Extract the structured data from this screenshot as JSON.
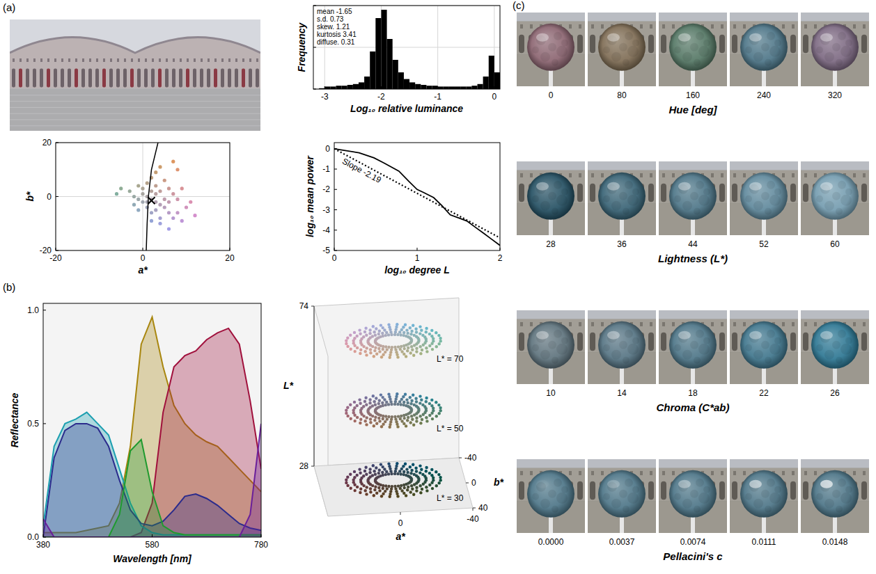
{
  "panel_labels": [
    "(a)",
    "(b)",
    "(c)"
  ],
  "chart_data": [
    {
      "type": "histogram",
      "x_label": "Log₁₀ relative luminance",
      "y_label": "Frequency",
      "bins": [
        -3.2,
        -3.1,
        -3.0,
        -2.9,
        -2.8,
        -2.7,
        -2.6,
        -2.5,
        -2.4,
        -2.3,
        -2.2,
        -2.1,
        -2.0,
        -1.9,
        -1.8,
        -1.7,
        -1.6,
        -1.5,
        -1.4,
        -1.3,
        -1.2,
        -1.1,
        -1.0,
        -0.9,
        -0.8,
        -0.7,
        -0.6,
        -0.5,
        -0.4,
        -0.3,
        -0.2,
        -0.1,
        0.0,
        0.1
      ],
      "values": [
        0,
        0.01,
        0.03,
        0.03,
        0.04,
        0.04,
        0.05,
        0.06,
        0.08,
        0.15,
        0.45,
        0.85,
        0.95,
        0.6,
        0.35,
        0.2,
        0.12,
        0.08,
        0.06,
        0.05,
        0.04,
        0.04,
        0.03,
        0.03,
        0.03,
        0.03,
        0.03,
        0.03,
        0.04,
        0.06,
        0.15,
        0.4,
        0.2
      ],
      "color": "#000000",
      "xlim": [
        -3.2,
        0.1
      ],
      "xticks": [
        -3,
        -2,
        -1,
        0
      ],
      "ylim": [
        0,
        1
      ],
      "yticks": [
        0,
        0.5,
        1
      ],
      "tick_labels": "x",
      "grid": true,
      "annotations": [
        "mean -1.65",
        "s.d. 0.73",
        "skew. 1.21",
        "kurtosis 3.41",
        "diffuse. 0.31"
      ]
    },
    {
      "type": "scatter",
      "x_label": "a*",
      "y_label": "b*",
      "xlim": [
        -20,
        20
      ],
      "ylim": [
        -20,
        20
      ],
      "xticks": [
        -20,
        0,
        20
      ],
      "yticks": [
        -20,
        0,
        20
      ],
      "grid": true,
      "series": [
        {
          "type": "scatter",
          "x": [
            2,
            1,
            3,
            2,
            0,
            4,
            3,
            5,
            6,
            7,
            8,
            9,
            4,
            2,
            1,
            -1,
            -2,
            -3,
            -5,
            -6,
            0,
            1,
            2,
            3,
            4,
            7,
            8,
            5,
            6,
            7,
            8,
            10,
            12,
            11,
            9,
            4,
            6,
            2,
            -1,
            -2,
            0,
            3,
            5,
            4,
            1,
            3,
            -1,
            6
          ],
          "values": [
            -1,
            0,
            1,
            2,
            -2,
            -3,
            -5,
            -4,
            -6,
            -8,
            -6,
            -9,
            -8,
            -6,
            -4,
            -1,
            0,
            2,
            3,
            1,
            3,
            5,
            7,
            9,
            11,
            13,
            10,
            6,
            3,
            1,
            -1,
            -4,
            -7,
            -2,
            3,
            -10,
            -12,
            -9,
            -5,
            -3,
            1,
            -2,
            -1,
            2,
            -2,
            4,
            4,
            -2
          ]
        },
        {
          "type": "line",
          "color": "#000000",
          "line_style": "solid",
          "x": [
            0.8,
            1.0,
            1.3,
            2.0,
            3.5
          ],
          "values": [
            -20,
            -10,
            0,
            10,
            20
          ]
        },
        {
          "type": "scatter",
          "marker": "x",
          "color": "#000000",
          "x": [
            2
          ],
          "values": [
            -1.5
          ]
        }
      ]
    },
    {
      "type": "line",
      "x_label": "log₁₀ degree L",
      "y_label": "log₁₀ mean power",
      "xlim": [
        0,
        2
      ],
      "ylim": [
        -5,
        0.3
      ],
      "xticks": [
        0,
        1,
        2
      ],
      "yticks": [
        -5,
        -4,
        -3,
        -2,
        -1,
        0
      ],
      "series": [
        {
          "color": "#000000",
          "line_style": "solid",
          "x": [
            0,
            0.3,
            0.48,
            0.6,
            0.78,
            0.9,
            1.0,
            1.08,
            1.2,
            1.3,
            1.4,
            1.5,
            1.6,
            1.7,
            1.8,
            1.9,
            2.0
          ],
          "values": [
            0,
            -0.2,
            -0.45,
            -0.7,
            -1.1,
            -1.6,
            -2.0,
            -2.15,
            -2.4,
            -2.8,
            -3.25,
            -3.4,
            -3.55,
            -3.85,
            -4.15,
            -4.45,
            -4.75
          ]
        },
        {
          "color": "#000000",
          "line_style": "dotted",
          "x": [
            0,
            2
          ],
          "values": [
            0,
            -4.38
          ]
        }
      ],
      "annotations": [
        "Slope -2.19"
      ]
    },
    {
      "type": "area",
      "x_label": "Wavelength [nm]",
      "y_label": "Reflectance",
      "xlim": [
        380,
        780
      ],
      "ylim": [
        0,
        1.03
      ],
      "xticks": [
        380,
        580,
        780
      ],
      "yticks": [
        {
          "value": 0,
          "label": "0.0"
        },
        {
          "value": 0.5,
          "label": "0.5"
        },
        {
          "value": 1,
          "label": "1.0"
        }
      ],
      "x": [
        380,
        400,
        420,
        440,
        460,
        480,
        500,
        520,
        540,
        560,
        580,
        600,
        620,
        640,
        660,
        680,
        700,
        720,
        740,
        760,
        780
      ],
      "series": [
        {
          "color": "#a8860e",
          "values": [
            0.02,
            0.02,
            0.02,
            0.02,
            0.03,
            0.04,
            0.05,
            0.15,
            0.4,
            0.85,
            0.97,
            0.75,
            0.58,
            0.5,
            0.45,
            0.42,
            0.4,
            0.35,
            0.3,
            0.25,
            0.2
          ]
        },
        {
          "color": "#a0103c",
          "values": [
            0,
            0,
            0,
            0,
            0,
            0,
            0,
            0,
            0,
            0.02,
            0.15,
            0.55,
            0.75,
            0.8,
            0.82,
            0.87,
            0.9,
            0.92,
            0.85,
            0.6,
            0.3
          ]
        },
        {
          "color": "#1b9fb0",
          "values": [
            0.05,
            0.4,
            0.5,
            0.52,
            0.55,
            0.5,
            0.45,
            0.3,
            0.15,
            0.05,
            0.02,
            0.01,
            0.01,
            0.01,
            0.01,
            0.01,
            0.01,
            0.01,
            0.01,
            0.01,
            0.01
          ]
        },
        {
          "color": "#2b2b8c",
          "values": [
            0,
            0.35,
            0.47,
            0.5,
            0.5,
            0.48,
            0.4,
            0.25,
            0.12,
            0.06,
            0.05,
            0.07,
            0.12,
            0.18,
            0.19,
            0.17,
            0.14,
            0.1,
            0.06,
            0.04,
            0.03
          ]
        },
        {
          "color": "#1f9a2e",
          "values": [
            0,
            0,
            0,
            0,
            0,
            0,
            0,
            0.1,
            0.38,
            0.43,
            0.2,
            0.05,
            0.02,
            0.01,
            0.01,
            0.01,
            0.01,
            0.01,
            0.01,
            0.01,
            0.01
          ]
        },
        {
          "color": "#6a1f9a",
          "values": [
            0.08,
            0,
            0,
            0,
            0,
            0,
            0,
            0,
            0,
            0,
            0,
            0,
            0,
            0,
            0,
            0,
            0,
            0,
            0,
            0.1,
            0.5
          ]
        }
      ]
    },
    {
      "type": "scatter3d",
      "x_label": "a*",
      "y_label": "b*",
      "z_label": "L*",
      "xlim": [
        -40,
        40
      ],
      "ylim": [
        -40,
        40
      ],
      "zlim": [
        28,
        74
      ],
      "xticks": [
        0,
        -40
      ],
      "yticks": [
        -40,
        0,
        40
      ],
      "zticks": [
        28,
        74
      ],
      "lightness_levels": [
        30,
        50,
        70
      ],
      "hues": [
        0,
        10,
        20,
        30,
        40,
        50,
        60,
        70,
        80,
        90,
        100,
        110,
        120,
        130,
        140,
        150,
        160,
        170,
        180,
        190,
        200,
        210,
        220,
        230,
        240,
        250,
        260,
        270,
        280,
        290,
        300,
        310,
        320,
        330,
        340,
        350
      ],
      "chromas": [
        10,
        14,
        18,
        22,
        26
      ],
      "ring_labels": [
        "L* = 30",
        "L* = 50",
        "L* = 70"
      ]
    }
  ],
  "stimuli": {
    "rows": [
      {
        "title": "Hue [deg]",
        "values": [
          0,
          80,
          160,
          240,
          320
        ]
      },
      {
        "title": "Lightness (L*)",
        "values": [
          28,
          36,
          44,
          52,
          60
        ]
      },
      {
        "title": "Chroma (C*ab)",
        "values": [
          10,
          14,
          18,
          22,
          26
        ]
      },
      {
        "title": "Pellacini's c",
        "values": [
          0,
          0.0037,
          0.0074,
          0.0111,
          0.0148
        ],
        "value_labels": [
          "0.0000",
          "0.0037",
          "0.0074",
          "0.0111",
          "0.0148"
        ]
      }
    ]
  }
}
